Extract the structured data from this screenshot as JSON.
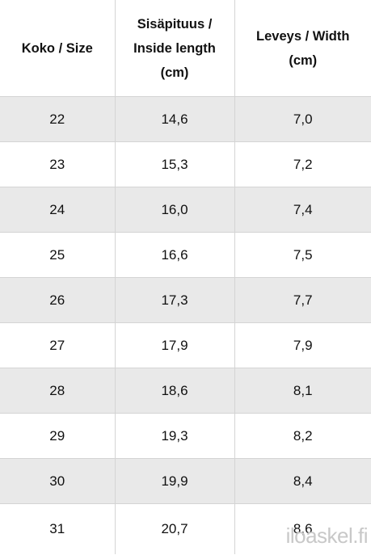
{
  "table": {
    "header": [
      [
        "Koko / Size"
      ],
      [
        "Sisäpituus /",
        "Inside length",
        "(cm)"
      ],
      [
        "Leveys / Width",
        "(cm)"
      ]
    ],
    "rows": [
      [
        "22",
        "14,6",
        "7,0"
      ],
      [
        "23",
        "15,3",
        "7,2"
      ],
      [
        "24",
        "16,0",
        "7,4"
      ],
      [
        "25",
        "16,6",
        "7,5"
      ],
      [
        "26",
        "17,3",
        "7,7"
      ],
      [
        "27",
        "17,9",
        "7,9"
      ],
      [
        "28",
        "18,6",
        "8,1"
      ],
      [
        "29",
        "19,3",
        "8,2"
      ],
      [
        "30",
        "19,9",
        "8,4"
      ],
      [
        "31",
        "20,7",
        "8,6"
      ]
    ]
  },
  "watermark": "iloaskel.fi"
}
